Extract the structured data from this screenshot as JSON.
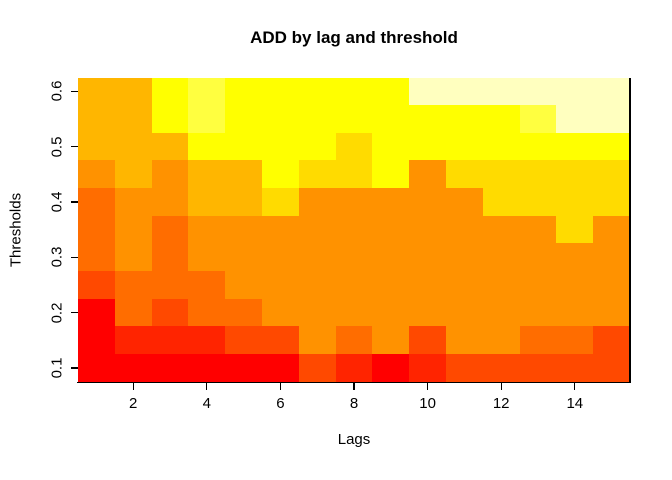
{
  "title": "ADD by lag and threshold",
  "chart_data": {
    "type": "heatmap",
    "title": "ADD by lag and threshold",
    "xlabel": "Lags",
    "ylabel": "Thresholds",
    "x_values": [
      1,
      2,
      3,
      4,
      5,
      6,
      7,
      8,
      9,
      10,
      11,
      12,
      13,
      14,
      15
    ],
    "x_tick_labels": [
      "2",
      "4",
      "6",
      "8",
      "10",
      "12",
      "14"
    ],
    "x_tick_values": [
      2,
      4,
      6,
      8,
      10,
      12,
      14
    ],
    "y_tick_labels": [
      "0.1",
      "0.2",
      "0.3",
      "0.4",
      "0.5",
      "0.6"
    ],
    "y_tick_values": [
      0.1,
      0.2,
      0.3,
      0.4,
      0.5,
      0.6
    ],
    "xlim": [
      0.5,
      15.5
    ],
    "ylim": [
      0.075,
      0.625
    ],
    "grid": false,
    "legend": "none",
    "palette_name": "heat-colors",
    "palette": [
      "#FF0000",
      "#FF2400",
      "#FF4900",
      "#FF6D00",
      "#FF9200",
      "#FFB600",
      "#FFDB00",
      "#FFFF00",
      "#FFFF40",
      "#FFFF80",
      "#FFFFBF",
      "#FFFFFF"
    ],
    "rows_top_to_bottom": [
      {
        "threshold": 0.6,
        "colors": [
          "#FFB600",
          "#FFB600",
          "#FFFF00",
          "#FFFF40",
          "#FFFF00",
          "#FFFF00",
          "#FFFF00",
          "#FFFF00",
          "#FFFF00",
          "#FFFFBF",
          "#FFFFBF",
          "#FFFFBF",
          "#FFFFBF",
          "#FFFFBF",
          "#FFFFBF"
        ]
      },
      {
        "threshold": 0.55,
        "colors": [
          "#FFB600",
          "#FFB600",
          "#FFFF00",
          "#FFFF40",
          "#FFFF00",
          "#FFFF00",
          "#FFFF00",
          "#FFFF00",
          "#FFFF00",
          "#FFFF00",
          "#FFFF00",
          "#FFFF00",
          "#FFFF40",
          "#FFFFBF",
          "#FFFFBF"
        ]
      },
      {
        "threshold": 0.5,
        "colors": [
          "#FFB600",
          "#FFB600",
          "#FFB600",
          "#FFFF00",
          "#FFFF00",
          "#FFFF00",
          "#FFFF00",
          "#FFDB00",
          "#FFFF00",
          "#FFFF00",
          "#FFFF00",
          "#FFFF00",
          "#FFFF00",
          "#FFFF00",
          "#FFFF00"
        ]
      },
      {
        "threshold": 0.45,
        "colors": [
          "#FF9200",
          "#FFB600",
          "#FF9200",
          "#FFB600",
          "#FFB600",
          "#FFFF00",
          "#FFDB00",
          "#FFDB00",
          "#FFFF00",
          "#FF9200",
          "#FFDB00",
          "#FFDB00",
          "#FFDB00",
          "#FFDB00",
          "#FFDB00"
        ]
      },
      {
        "threshold": 0.4,
        "colors": [
          "#FF6D00",
          "#FF9200",
          "#FF9200",
          "#FFB600",
          "#FFB600",
          "#FFDB00",
          "#FF9200",
          "#FF9200",
          "#FF9200",
          "#FF9200",
          "#FF9200",
          "#FFDB00",
          "#FFDB00",
          "#FFDB00",
          "#FFDB00"
        ]
      },
      {
        "threshold": 0.35,
        "colors": [
          "#FF6D00",
          "#FF9200",
          "#FF6D00",
          "#FF9200",
          "#FF9200",
          "#FF9200",
          "#FF9200",
          "#FF9200",
          "#FF9200",
          "#FF9200",
          "#FF9200",
          "#FF9200",
          "#FF9200",
          "#FFDB00",
          "#FF9200"
        ]
      },
      {
        "threshold": 0.3,
        "colors": [
          "#FF6D00",
          "#FF9200",
          "#FF6D00",
          "#FF9200",
          "#FF9200",
          "#FF9200",
          "#FF9200",
          "#FF9200",
          "#FF9200",
          "#FF9200",
          "#FF9200",
          "#FF9200",
          "#FF9200",
          "#FF9200",
          "#FF9200"
        ]
      },
      {
        "threshold": 0.25,
        "colors": [
          "#FF4900",
          "#FF6D00",
          "#FF6D00",
          "#FF6D00",
          "#FF9200",
          "#FF9200",
          "#FF9200",
          "#FF9200",
          "#FF9200",
          "#FF9200",
          "#FF9200",
          "#FF9200",
          "#FF9200",
          "#FF9200",
          "#FF9200"
        ]
      },
      {
        "threshold": 0.2,
        "colors": [
          "#FF0000",
          "#FF6D00",
          "#FF4900",
          "#FF6D00",
          "#FF6D00",
          "#FF9200",
          "#FF9200",
          "#FF9200",
          "#FF9200",
          "#FF9200",
          "#FF9200",
          "#FF9200",
          "#FF9200",
          "#FF9200",
          "#FF9200"
        ]
      },
      {
        "threshold": 0.15,
        "colors": [
          "#FF0000",
          "#FF2400",
          "#FF2400",
          "#FF2400",
          "#FF4900",
          "#FF4900",
          "#FF9200",
          "#FF6D00",
          "#FF9200",
          "#FF4900",
          "#FF9200",
          "#FF9200",
          "#FF6D00",
          "#FF6D00",
          "#FF4900"
        ]
      },
      {
        "threshold": 0.1,
        "colors": [
          "#FF0000",
          "#FF0000",
          "#FF0000",
          "#FF0000",
          "#FF0000",
          "#FF0000",
          "#FF4900",
          "#FF2400",
          "#FF0000",
          "#FF2400",
          "#FF4900",
          "#FF4900",
          "#FF4900",
          "#FF4900",
          "#FF4900"
        ]
      }
    ]
  },
  "layout_colors": {
    "background": "#FFFFFF",
    "axis": "#000000",
    "text": "#000000"
  }
}
